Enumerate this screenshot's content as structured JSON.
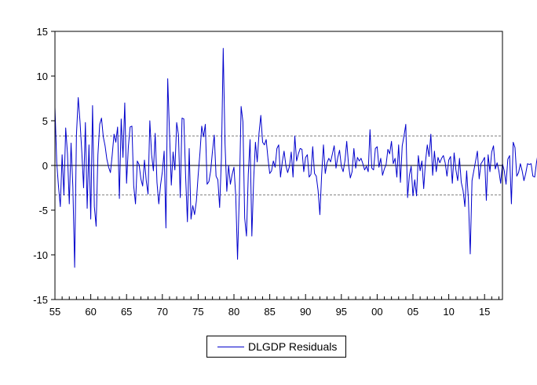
{
  "chart_data": {
    "type": "line",
    "title": "",
    "xlabel": "",
    "ylabel": "",
    "ylim": [
      -15,
      15
    ],
    "yticks": [
      "15",
      "10",
      "5",
      "0",
      "-5",
      "-10",
      "-15"
    ],
    "xlim": [
      1955.0,
      2017.5
    ],
    "xticks": [
      "55",
      "60",
      "65",
      "70",
      "75",
      "80",
      "85",
      "90",
      "95",
      "00",
      "05",
      "10",
      "15"
    ],
    "frequency": "quarterly",
    "zero_line": 0,
    "reference_lines": [
      3.3,
      -3.3
    ],
    "legend": {
      "placement": "bottom-center"
    },
    "colors": {
      "series": "#0000cc",
      "axis": "#000000",
      "reference": "#808080"
    },
    "series": [
      {
        "name": "DLGDP Residuals",
        "start": 1955.0,
        "step": 0.25,
        "values": [
          6.5,
          0.3,
          -2.4,
          -4.6,
          1.2,
          -3.3,
          4.2,
          1.3,
          -4.3,
          2.5,
          -2.4,
          -11.4,
          3.4,
          7.6,
          4.9,
          1.5,
          -2.5,
          4.8,
          -4.8,
          2.3,
          -6.0,
          6.7,
          -4.6,
          -6.8,
          1.2,
          4.6,
          5.3,
          3.2,
          2.2,
          0.7,
          -0.2,
          -0.8,
          1.2,
          3.5,
          2.6,
          4.3,
          -3.7,
          5.2,
          0.9,
          7.0,
          -2.0,
          2.1,
          4.3,
          4.4,
          -2.3,
          -4.3,
          0.5,
          0.1,
          -1.5,
          -2.3,
          0.6,
          -1.7,
          -3.2,
          5.0,
          1.2,
          -0.6,
          3.6,
          -1.9,
          -4.3,
          -2.2,
          -0.7,
          1.6,
          -7.0,
          9.7,
          3.6,
          -2.2,
          1.5,
          -0.5,
          4.8,
          3.4,
          -3.6,
          5.3,
          5.2,
          -1.2,
          -6.3,
          1.9,
          -6.0,
          -4.5,
          -5.5,
          -4.0,
          -1.1,
          1.4,
          4.4,
          3.2,
          4.6,
          -2.1,
          -1.8,
          -0.6,
          1.6,
          3.4,
          -1.2,
          -1.6,
          -4.7,
          0.8,
          13.1,
          2.5,
          -2.9,
          0.0,
          -2.1,
          -1.0,
          -0.2,
          -3.4,
          -10.5,
          -3.3,
          6.6,
          4.9,
          -5.9,
          -7.9,
          -1.0,
          2.9,
          -7.9,
          -1.6,
          2.6,
          0.4,
          3.6,
          5.6,
          2.6,
          2.3,
          2.9,
          0.8,
          -0.9,
          -0.6,
          0.5,
          -0.2,
          1.9,
          2.3,
          -1.3,
          0.4,
          1.6,
          0.0,
          -0.8,
          -0.1,
          1.5,
          -1.3,
          3.3,
          0.5,
          1.3,
          1.9,
          1.8,
          -0.7,
          0.9,
          1.2,
          -1.3,
          -1.0,
          2.1,
          -0.9,
          -1.2,
          -2.8,
          -5.5,
          -1.0,
          2.3,
          -0.9,
          0.3,
          0.8,
          0.4,
          1.3,
          2.2,
          -0.3,
          0.9,
          1.7,
          -0.1,
          -0.7,
          0.5,
          2.7,
          0.1,
          -1.4,
          -0.7,
          1.9,
          -0.3,
          0.9,
          0.5,
          0.8,
          0.2,
          -0.5,
          -0.1,
          -0.7,
          4.0,
          -0.3,
          -0.5,
          1.9,
          2.1,
          -0.2,
          0.8,
          -1.1,
          -0.4,
          0.1,
          1.8,
          1.3,
          2.7,
          0.2,
          0.8,
          -1.3,
          2.3,
          -1.9,
          2.2,
          3.3,
          4.6,
          -3.6,
          -1.1,
          -0.1,
          -3.4,
          -1.6,
          -3.4,
          1.1,
          -0.6,
          0.5,
          -2.6,
          0.4,
          2.3,
          1.0,
          3.5,
          -1.1,
          1.6,
          -0.7,
          0.9,
          0.3,
          0.8,
          1.1,
          0.3,
          -1.2,
          0.6,
          1.0,
          -2.0,
          1.4,
          -0.5,
          -1.7,
          0.8,
          -1.9,
          -2.8,
          -4.6,
          -0.6,
          -3.9,
          -9.9,
          -1.7,
          -0.6,
          0.5,
          1.6,
          -1.5,
          0.2,
          0.5,
          0.9,
          -3.9,
          1.2,
          -0.7,
          1.5,
          2.2,
          -0.4,
          0.3,
          -0.6,
          -2.0,
          0.2,
          -0.6,
          -2.1,
          0.7,
          1.1,
          -4.3,
          2.6,
          2.0,
          -1.2,
          -0.8,
          0.2,
          -0.6,
          -1.7,
          -0.9,
          0.2,
          0.1,
          0.2,
          -1.2,
          -1.3,
          0.3,
          1.5
        ]
      }
    ]
  }
}
